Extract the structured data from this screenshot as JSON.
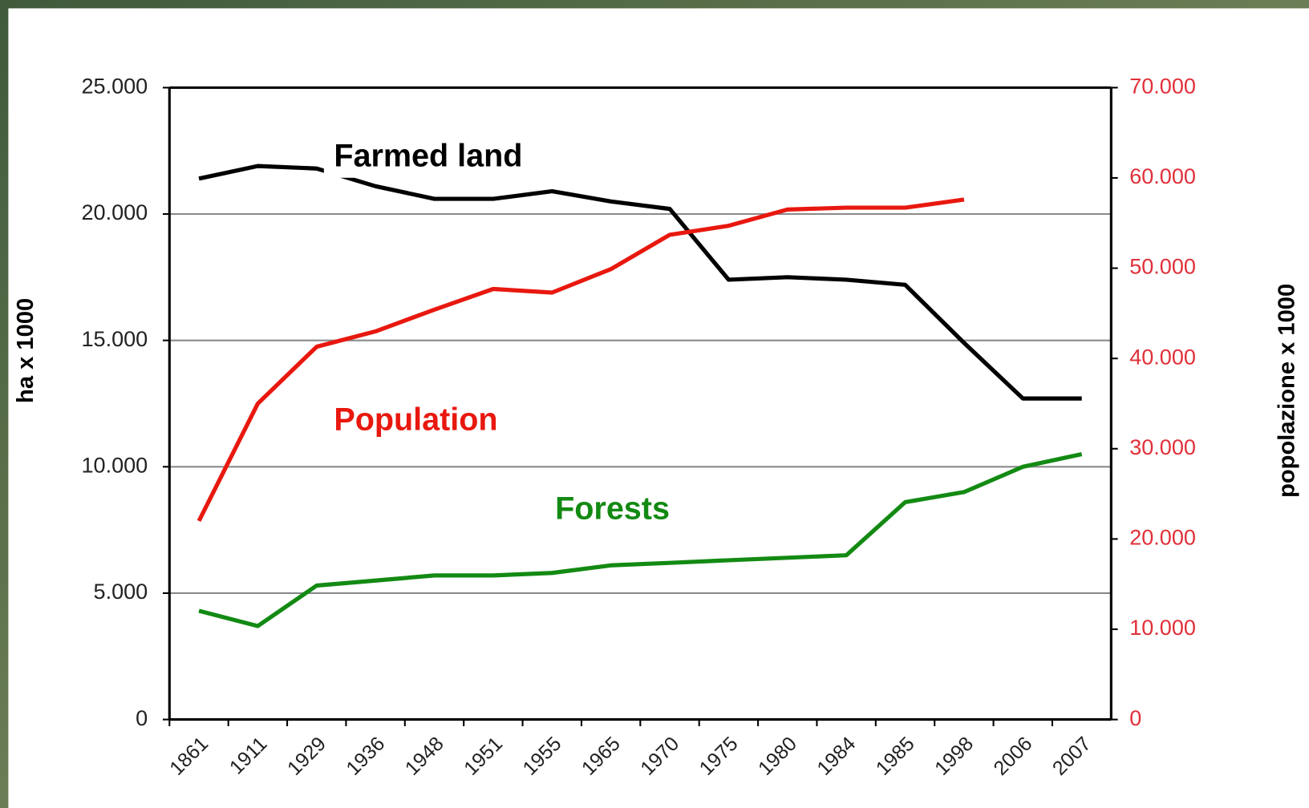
{
  "chart_data": {
    "type": "line",
    "categories": [
      "1861",
      "1911",
      "1929",
      "1936",
      "1948",
      "1951",
      "1955",
      "1965",
      "1970",
      "1975",
      "1980",
      "1984",
      "1985",
      "1998",
      "2006",
      "2007"
    ],
    "y_label": "ha x 1000",
    "y2_label": "popolazione x 1000",
    "ylim": [
      0,
      25000
    ],
    "yticks": [
      0,
      {
        "value": 5000,
        "label": "5.000"
      },
      {
        "value": 10000,
        "label": "10.000"
      },
      {
        "value": 15000,
        "label": "15.000"
      },
      {
        "value": 20000,
        "label": "20.000"
      },
      {
        "value": 25000,
        "label": "25.000"
      }
    ],
    "y2lim": [
      0,
      70000
    ],
    "y2ticks": [
      0,
      {
        "value": 10000,
        "label": "10.000"
      },
      {
        "value": 20000,
        "label": "20.000"
      },
      {
        "value": 30000,
        "label": "30.000"
      },
      {
        "value": 40000,
        "label": "40.000"
      },
      {
        "value": 50000,
        "label": "50.000"
      },
      {
        "value": 60000,
        "label": "60.000"
      },
      {
        "value": 70000,
        "label": "70.000"
      }
    ],
    "grid": true,
    "series": [
      {
        "name": "Farmed land",
        "color": "#000000",
        "values": [
          21400,
          21900,
          21800,
          21100,
          20600,
          20600,
          20900,
          20500,
          20200,
          17400,
          17500,
          17400,
          17200,
          14900,
          12700,
          12700
        ]
      },
      {
        "name": "Population",
        "color": "#e8180f",
        "axis": "y2",
        "values": [
          22000,
          35000,
          41300,
          43000,
          45400,
          47700,
          47300,
          49900,
          53700,
          54700,
          56500,
          56700,
          56700,
          57600,
          null,
          null
        ]
      },
      {
        "name": "Forests",
        "color": "#138a13",
        "values": [
          4300,
          3700,
          5300,
          5500,
          5700,
          5700,
          5800,
          6100,
          6200,
          6300,
          6400,
          6500,
          8600,
          9000,
          10000,
          10500
        ]
      }
    ]
  }
}
